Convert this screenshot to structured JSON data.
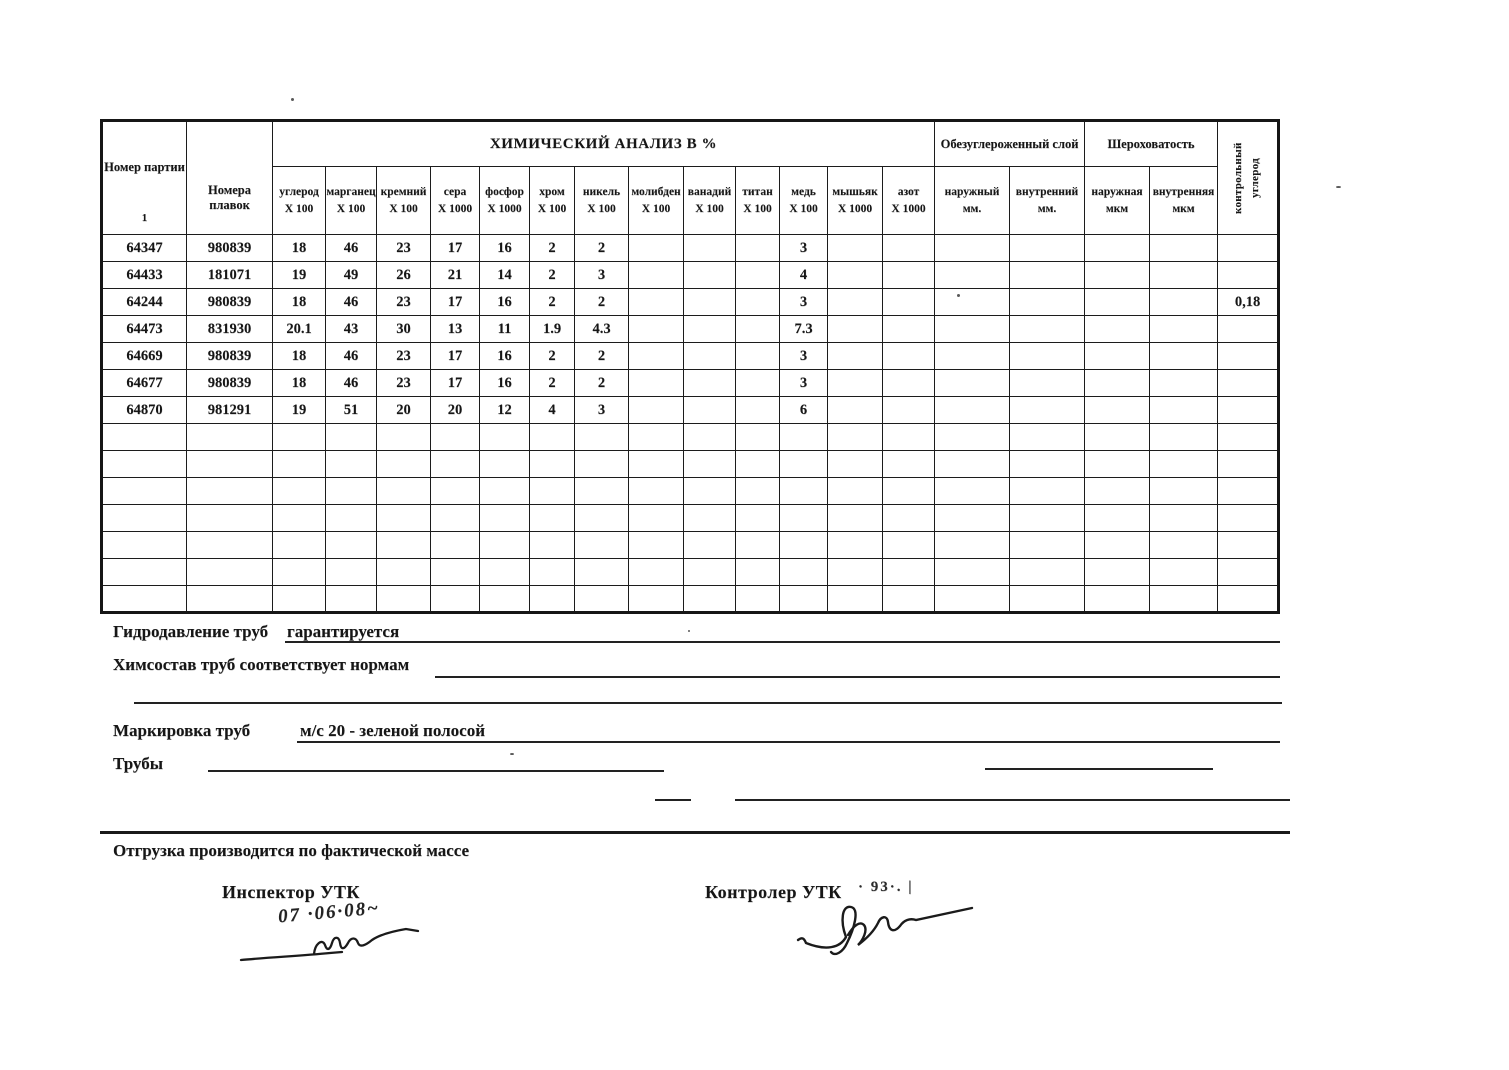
{
  "table": {
    "title": "ХИМИЧЕСКИЙ АНАЛИЗ В  %",
    "party_col": {
      "label": "Номер партии",
      "footnote": "1"
    },
    "melt_col": {
      "label": "Номера плавок"
    },
    "decarb_group": "Обезуглероженный слой",
    "rough_group": "Шероховатость",
    "control_col": "контрольный углерод",
    "element_cols": [
      {
        "label": "углерод",
        "mult": "X 100"
      },
      {
        "label": "марганец",
        "mult": "X 100"
      },
      {
        "label": "кремний",
        "mult": "X 100"
      },
      {
        "label": "сера",
        "mult": "X 1000"
      },
      {
        "label": "фосфор",
        "mult": "X 1000"
      },
      {
        "label": "хром",
        "mult": "X 100"
      },
      {
        "label": "никель",
        "mult": "X 100"
      },
      {
        "label": "молибден",
        "mult": "X 100"
      },
      {
        "label": "ванадий",
        "mult": "X 100"
      },
      {
        "label": "титан",
        "mult": "X 100"
      },
      {
        "label": "медь",
        "mult": "X 100"
      },
      {
        "label": "мышьяк",
        "mult": "X 1000"
      },
      {
        "label": "азот",
        "mult": "X 1000"
      }
    ],
    "decarb_cols": [
      {
        "label": "наружный",
        "unit": "мм."
      },
      {
        "label": "внутренний",
        "unit": "мм."
      }
    ],
    "rough_cols": [
      {
        "label": "наружная",
        "unit": "мкм"
      },
      {
        "label": "внутренняя",
        "unit": "мкм"
      }
    ],
    "rows": [
      [
        "64347",
        "980839",
        "18",
        "46",
        "23",
        "17",
        "16",
        "2",
        "2",
        "",
        "",
        "",
        "3",
        "",
        "",
        "",
        "",
        "",
        "",
        ""
      ],
      [
        "64433",
        "181071",
        "19",
        "49",
        "26",
        "21",
        "14",
        "2",
        "3",
        "",
        "",
        "",
        "4",
        "",
        "",
        "",
        "",
        "",
        "",
        ""
      ],
      [
        "64244",
        "980839",
        "18",
        "46",
        "23",
        "17",
        "16",
        "2",
        "2",
        "",
        "",
        "",
        "3",
        "",
        "",
        "",
        "",
        "",
        "",
        "0,18"
      ],
      [
        "64473",
        "831930",
        "20.1",
        "43",
        "30",
        "13",
        "11",
        "1.9",
        "4.3",
        "",
        "",
        "",
        "7.3",
        "",
        "",
        "",
        "",
        "",
        "",
        ""
      ],
      [
        "64669",
        "980839",
        "18",
        "46",
        "23",
        "17",
        "16",
        "2",
        "2",
        "",
        "",
        "",
        "3",
        "",
        "",
        "",
        "",
        "",
        "",
        ""
      ],
      [
        "64677",
        "980839",
        "18",
        "46",
        "23",
        "17",
        "16",
        "2",
        "2",
        "",
        "",
        "",
        "3",
        "",
        "",
        "",
        "",
        "",
        "",
        ""
      ],
      [
        "64870",
        "981291",
        "19",
        "51",
        "20",
        "20",
        "12",
        "4",
        "3",
        "",
        "",
        "",
        "6",
        "",
        "",
        "",
        "",
        "",
        "",
        ""
      ]
    ],
    "empty_row_count": 7
  },
  "footer": {
    "hydro_label": "Гидродавление труб",
    "hydro_value": "гарантируется",
    "chem_label": "Химсостав труб соответствует нормам",
    "marking_label": "Маркировка труб",
    "marking_value": "м/с 20 - зеленой полосой",
    "pipes_label": "Трубы",
    "shipping_note": "Отгрузка производится по фактической массе",
    "inspector_label": "Инспектор  УТК",
    "controller_label": "Контролер УТК"
  },
  "signatures": {
    "inspector_date": "07 ·06·08~",
    "controller_mark": "·   93·. |"
  }
}
